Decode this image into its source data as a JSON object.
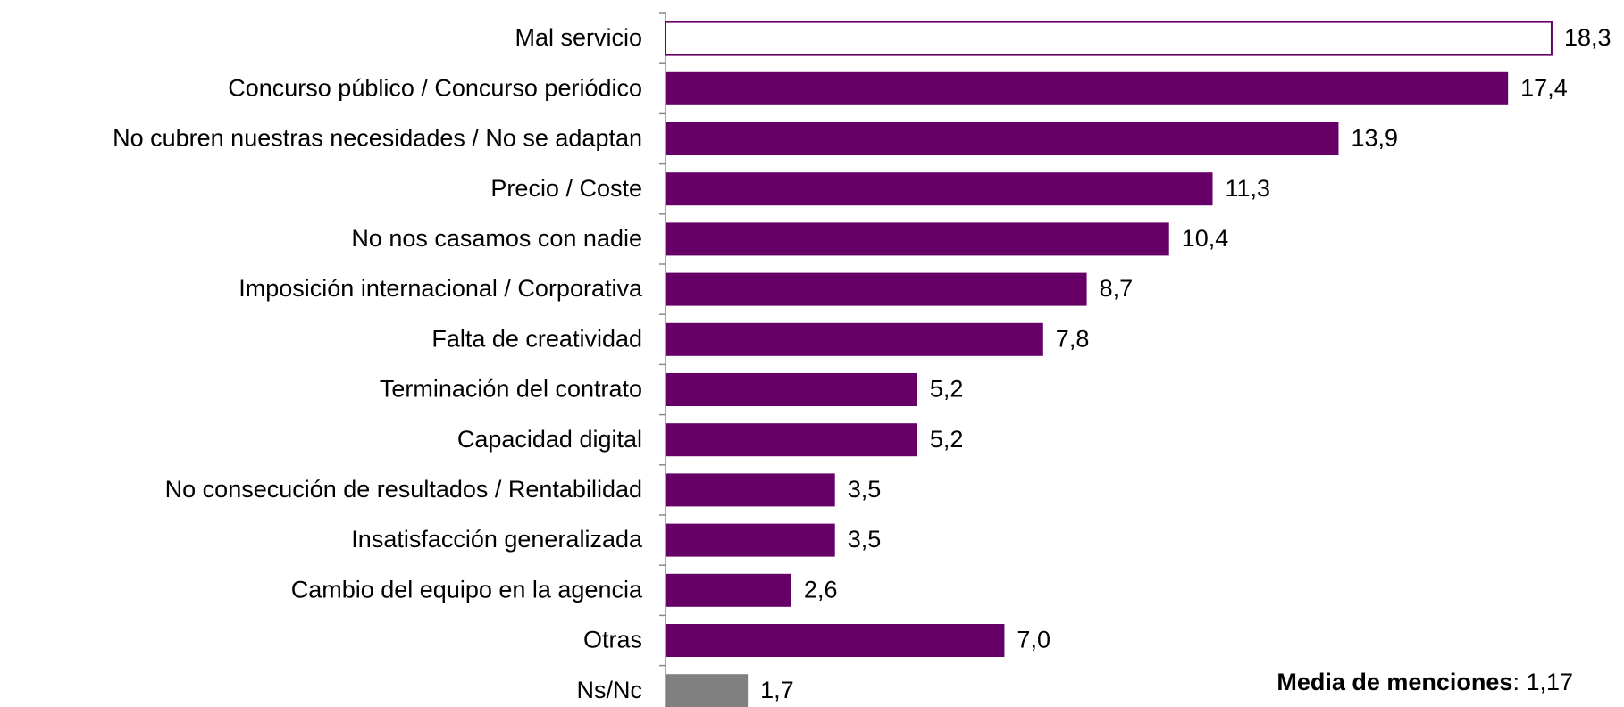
{
  "chart_data": {
    "type": "barh",
    "categories": [
      "Mal servicio",
      "Concurso público / Concurso periódico",
      "No cubren nuestras necesidades / No se adaptan",
      "Precio / Coste",
      "No nos casamos con nadie",
      "Imposición internacional / Corporativa",
      "Falta de creatividad",
      "Terminación del contrato",
      "Capacidad digital",
      "No consecución de resultados / Rentabilidad",
      "Insatisfacción generalizada",
      "Cambio del equipo en la agencia",
      "Otras",
      "Ns/Nc"
    ],
    "values": [
      18.3,
      17.4,
      13.9,
      11.3,
      10.4,
      8.7,
      7.8,
      5.2,
      5.2,
      3.5,
      3.5,
      2.6,
      7.0,
      1.7
    ],
    "value_labels": [
      "18,3",
      "17,4",
      "13,9",
      "11,3",
      "10,4",
      "8,7",
      "7,8",
      "5,2",
      "5,2",
      "3,5",
      "3,5",
      "2,6",
      "7,0",
      "1,7"
    ],
    "colors": [
      "#ffffff",
      "#660066",
      "#660066",
      "#660066",
      "#660066",
      "#660066",
      "#660066",
      "#660066",
      "#660066",
      "#660066",
      "#660066",
      "#660066",
      "#660066",
      "#808080"
    ],
    "edgecolor": "#660066",
    "xlim": [
      0,
      19.5
    ],
    "annotation": {
      "label": "Media de menciones",
      "text": ": 1,17"
    }
  }
}
